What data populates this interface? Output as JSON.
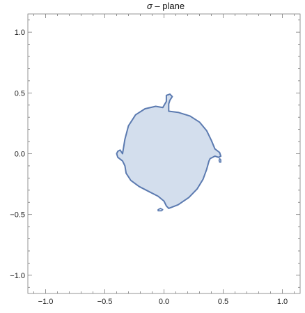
{
  "chart_data": {
    "type": "region",
    "title_symbol": "σ",
    "title_rest": " – plane",
    "xlim": [
      -1.15,
      1.15
    ],
    "ylim": [
      -1.15,
      1.15
    ],
    "xticks": [
      -1.0,
      -0.5,
      0.0,
      0.5,
      1.0
    ],
    "yticks": [
      -1.0,
      -0.5,
      0.0,
      0.5,
      1.0
    ],
    "xtick_labels": [
      "−1.0",
      "−0.5",
      "0.0",
      "0.5",
      "1.0"
    ],
    "ytick_labels": [
      "−1.0",
      "−0.5",
      "0.0",
      "0.5",
      "1.0"
    ],
    "grid": false,
    "fill_color": "#d3deed",
    "stroke_color": "#5b7ab0",
    "region_main": [
      [
        -0.35,
        0.0
      ],
      [
        -0.33,
        0.12
      ],
      [
        -0.3,
        0.23
      ],
      [
        -0.24,
        0.32
      ],
      [
        -0.16,
        0.37
      ],
      [
        -0.07,
        0.39
      ],
      [
        -0.01,
        0.38
      ],
      [
        0.02,
        0.43
      ],
      [
        0.02,
        0.48
      ],
      [
        0.05,
        0.49
      ],
      [
        0.07,
        0.47
      ],
      [
        0.05,
        0.44
      ],
      [
        0.04,
        0.41
      ],
      [
        0.04,
        0.35
      ],
      [
        0.12,
        0.34
      ],
      [
        0.22,
        0.31
      ],
      [
        0.3,
        0.26
      ],
      [
        0.36,
        0.19
      ],
      [
        0.4,
        0.11
      ],
      [
        0.43,
        0.04
      ],
      [
        0.47,
        0.01
      ],
      [
        0.48,
        -0.02
      ],
      [
        0.46,
        -0.03
      ],
      [
        0.43,
        -0.02
      ],
      [
        0.39,
        -0.04
      ],
      [
        0.38,
        -0.06
      ],
      [
        0.36,
        -0.13
      ],
      [
        0.33,
        -0.21
      ],
      [
        0.28,
        -0.29
      ],
      [
        0.21,
        -0.36
      ],
      [
        0.12,
        -0.42
      ],
      [
        0.04,
        -0.45
      ],
      [
        0.02,
        -0.43
      ],
      [
        0.0,
        -0.39
      ],
      [
        -0.05,
        -0.35
      ],
      [
        -0.13,
        -0.31
      ],
      [
        -0.21,
        -0.27
      ],
      [
        -0.28,
        -0.22
      ],
      [
        -0.32,
        -0.16
      ],
      [
        -0.33,
        -0.1
      ],
      [
        -0.35,
        -0.06
      ],
      [
        -0.39,
        -0.03
      ],
      [
        -0.4,
        -0.0
      ],
      [
        -0.39,
        0.02
      ],
      [
        -0.37,
        0.03
      ]
    ],
    "region_islands": [
      [
        [
          0.47,
          -0.04
        ],
        [
          0.48,
          -0.05
        ],
        [
          0.48,
          -0.07
        ],
        [
          0.47,
          -0.07
        ],
        [
          0.465,
          -0.055
        ]
      ],
      [
        [
          -0.05,
          -0.46
        ],
        [
          -0.03,
          -0.45
        ],
        [
          -0.01,
          -0.46
        ],
        [
          -0.02,
          -0.47
        ],
        [
          -0.05,
          -0.47
        ]
      ]
    ]
  }
}
